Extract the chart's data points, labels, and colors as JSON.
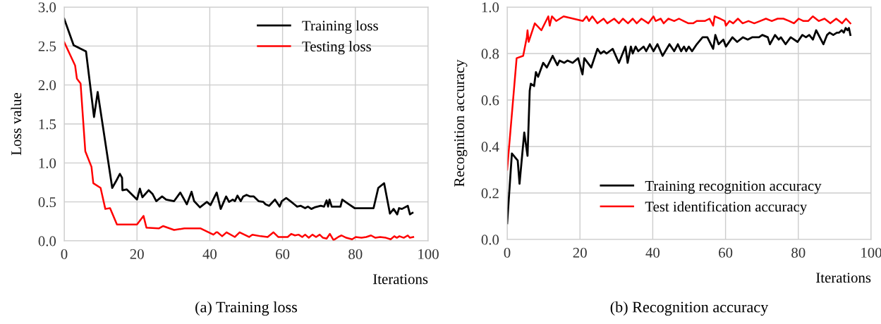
{
  "chart_data": [
    {
      "type": "line",
      "title": "(a) Training loss",
      "xlabel": "Iterations",
      "ylabel": "Loss value",
      "xlim": [
        0,
        100
      ],
      "xticks": [
        0,
        20,
        40,
        60,
        80,
        100
      ],
      "ylim": [
        0,
        3
      ],
      "yticks": [
        {
          "value": 0,
          "label": "0.0"
        },
        0.5,
        {
          "value": 1,
          "label": "1.0"
        },
        1.5,
        {
          "value": 2,
          "label": "2.0"
        },
        2.5,
        {
          "value": 3,
          "label": "3.0"
        }
      ],
      "grid": true,
      "legend": "top right",
      "marker": "none",
      "line_style": "solid",
      "series": [
        {
          "name": "Training loss",
          "color": "#000000",
          "x": [
            0,
            2.6,
            6,
            8.2,
            9.2,
            13.2,
            14.3,
            15.3,
            15.9,
            16.0,
            17.2,
            20,
            20.8,
            21.5,
            23.2,
            24.3,
            25.3,
            26.9,
            28,
            30.2,
            31.9,
            33.7,
            35,
            35.7,
            37.3,
            39.2,
            40.2,
            41.9,
            43.0,
            44.5,
            45.3,
            46.3,
            46.9,
            47.6,
            48.5,
            49.2,
            50.1,
            51.1,
            52.1,
            53.4,
            54.7,
            55.3,
            56.3,
            57.9,
            59.2,
            59.8,
            61.0,
            62.4,
            63.2,
            64.0,
            65.0,
            66.2,
            67.0,
            67.9,
            68.8,
            70.5,
            71.4,
            72.1,
            72.5,
            72.9,
            73.5,
            75.9,
            76.4,
            77.9,
            79.8,
            85.0,
            86.3,
            87.9,
            89.5,
            90.5,
            91.5,
            92.0,
            92.8,
            94.4,
            95.0,
            95.7
          ],
          "values": [
            2.85,
            2.51,
            2.43,
            1.59,
            1.91,
            0.68,
            0.77,
            0.86,
            0.81,
            0.65,
            0.66,
            0.53,
            0.67,
            0.56,
            0.65,
            0.6,
            0.51,
            0.57,
            0.53,
            0.51,
            0.62,
            0.47,
            0.63,
            0.51,
            0.43,
            0.5,
            0.46,
            0.62,
            0.41,
            0.57,
            0.5,
            0.53,
            0.51,
            0.58,
            0.51,
            0.57,
            0.59,
            0.57,
            0.57,
            0.51,
            0.5,
            0.47,
            0.45,
            0.53,
            0.44,
            0.51,
            0.55,
            0.5,
            0.47,
            0.44,
            0.45,
            0.42,
            0.44,
            0.41,
            0.43,
            0.45,
            0.44,
            0.52,
            0.44,
            0.53,
            0.44,
            0.44,
            0.53,
            0.48,
            0.42,
            0.42,
            0.68,
            0.74,
            0.35,
            0.41,
            0.34,
            0.42,
            0.41,
            0.45,
            0.34,
            0.36
          ]
        },
        {
          "name": "Testing loss",
          "color": "#ff0000",
          "x": [
            0,
            3,
            3.5,
            4.5,
            5.8,
            7.5,
            8,
            10,
            11.3,
            12.6,
            14.5,
            20,
            21.8,
            22.6,
            26,
            27.2,
            30.2,
            33,
            37.5,
            41,
            41.8,
            42.1,
            43.4,
            44.6,
            46.9,
            48.2,
            50.8,
            51.7,
            54.0,
            55.9,
            57.5,
            58.8,
            61.4,
            62.4,
            63.4,
            64.4,
            65.4,
            66.2,
            67.2,
            68.2,
            69.2,
            70.2,
            71.1,
            72.1,
            73.0,
            74.0,
            75.3,
            76.2,
            77.5,
            79.1,
            80.1,
            81.7,
            83.0,
            84.3,
            85.5,
            86.8,
            88.4,
            89.7,
            90.7,
            91.4,
            92.1,
            93.3,
            94.4,
            95.0,
            95.9
          ],
          "values": [
            2.55,
            2.25,
            2.08,
            2.02,
            1.15,
            0.95,
            0.74,
            0.68,
            0.41,
            0.42,
            0.21,
            0.21,
            0.32,
            0.17,
            0.16,
            0.19,
            0.14,
            0.16,
            0.16,
            0.08,
            0.11,
            0.11,
            0.06,
            0.11,
            0.05,
            0.11,
            0.05,
            0.08,
            0.06,
            0.05,
            0.11,
            0.05,
            0.05,
            0.09,
            0.07,
            0.08,
            0.05,
            0.08,
            0.04,
            0.08,
            0.05,
            0.08,
            0.04,
            0.03,
            0.09,
            0.01,
            0.05,
            0.07,
            0.04,
            0.02,
            0.05,
            0.04,
            0.05,
            0.07,
            0.04,
            0.05,
            0.04,
            0.02,
            0.06,
            0.04,
            0.06,
            0.04,
            0.07,
            0.04,
            0.05
          ]
        }
      ]
    },
    {
      "type": "line",
      "title": "(b) Recognition accuracy",
      "xlabel": "Iterations",
      "ylabel": "Recognition accuracy",
      "xlim": [
        0,
        100
      ],
      "xticks": [
        0,
        20,
        40,
        60,
        80,
        100
      ],
      "ylim": [
        0,
        1
      ],
      "yticks": [
        {
          "value": 0,
          "label": "0.0"
        },
        0.2,
        0.4,
        0.6,
        0.8,
        {
          "value": 1,
          "label": "1.0"
        }
      ],
      "grid": true,
      "legend": "bottom right",
      "marker": "none",
      "line_style": "solid",
      "series": [
        {
          "name": "Training recognition accuracy",
          "color": "#000000",
          "x": [
            0,
            1.3,
            2.9,
            3.4,
            4.7,
            5.6,
            6.2,
            6.5,
            7.4,
            7.9,
            8.5,
            9.9,
            10.9,
            12.5,
            13.8,
            14.4,
            15.7,
            16.6,
            18,
            19.5,
            20.7,
            21.2,
            23.1,
            24.8,
            25.7,
            26.6,
            27.3,
            29,
            30.7,
            32.5,
            33.1,
            34,
            34.5,
            35.3,
            36,
            37.5,
            38.2,
            39.2,
            40.2,
            41.3,
            42.7,
            44.6,
            45.9,
            46.9,
            47.8,
            48.6,
            49.2,
            49.9,
            50.8,
            52.1,
            53.7,
            55.0,
            56.6,
            57.2,
            58.1,
            59.4,
            60.1,
            61.9,
            63.2,
            64.8,
            66.1,
            67.3,
            69.2,
            70.1,
            71.6,
            72.2,
            73.6,
            74.6,
            75.2,
            76.5,
            77.9,
            79.8,
            81.1,
            82.1,
            83.0,
            84.0,
            84.9,
            86.9,
            87.9,
            88.6,
            89.6,
            90.6,
            91.2,
            91.9,
            92.5,
            93.0,
            93.5,
            93.9,
            94.3
          ],
          "values": [
            0.07,
            0.37,
            0.34,
            0.24,
            0.46,
            0.36,
            0.64,
            0.67,
            0.66,
            0.72,
            0.7,
            0.76,
            0.74,
            0.79,
            0.75,
            0.77,
            0.76,
            0.77,
            0.76,
            0.78,
            0.71,
            0.78,
            0.74,
            0.82,
            0.8,
            0.81,
            0.8,
            0.82,
            0.76,
            0.83,
            0.76,
            0.83,
            0.8,
            0.83,
            0.81,
            0.83,
            0.81,
            0.84,
            0.81,
            0.84,
            0.79,
            0.84,
            0.81,
            0.84,
            0.81,
            0.83,
            0.81,
            0.83,
            0.81,
            0.84,
            0.87,
            0.87,
            0.82,
            0.88,
            0.84,
            0.86,
            0.83,
            0.87,
            0.85,
            0.87,
            0.86,
            0.87,
            0.87,
            0.88,
            0.87,
            0.84,
            0.88,
            0.86,
            0.87,
            0.84,
            0.87,
            0.85,
            0.88,
            0.87,
            0.88,
            0.86,
            0.9,
            0.84,
            0.88,
            0.89,
            0.88,
            0.89,
            0.89,
            0.9,
            0.89,
            0.91,
            0.9,
            0.91,
            0.88
          ]
        },
        {
          "name": "Test identification accuracy",
          "color": "#ff0000",
          "x": [
            0,
            2.6,
            4.4,
            5.4,
            5.6,
            5.9,
            7.6,
            9.4,
            11.3,
            11.7,
            12.3,
            13.5,
            15.5,
            20.8,
            21.8,
            22.5,
            23.4,
            24.8,
            26.5,
            27.5,
            29.4,
            30.7,
            31.8,
            33.2,
            34.5,
            35.6,
            36.9,
            38.8,
            40.2,
            40.8,
            42.2,
            43.0,
            44.3,
            45.9,
            47.2,
            48.5,
            49.8,
            51.1,
            52.1,
            53.4,
            54.3,
            55.6,
            56.6,
            57.0,
            58.5,
            59.8,
            60.1,
            61.1,
            62.1,
            63.4,
            64.7,
            66.3,
            67.9,
            69.5,
            71.1,
            72.7,
            74.3,
            75.9,
            77.5,
            78.8,
            80.1,
            81.4,
            82.7,
            84.0,
            85.6,
            87.2,
            88.8,
            90.4,
            92.0,
            93.1,
            94.3
          ],
          "values": [
            0.3,
            0.78,
            0.79,
            0.87,
            0.9,
            0.85,
            0.93,
            0.9,
            0.96,
            0.92,
            0.96,
            0.94,
            0.96,
            0.94,
            0.96,
            0.94,
            0.96,
            0.93,
            0.95,
            0.93,
            0.95,
            0.93,
            0.95,
            0.93,
            0.95,
            0.93,
            0.95,
            0.93,
            0.96,
            0.94,
            0.95,
            0.93,
            0.95,
            0.94,
            0.95,
            0.94,
            0.93,
            0.93,
            0.94,
            0.94,
            0.94,
            0.95,
            0.92,
            0.96,
            0.95,
            0.94,
            0.92,
            0.94,
            0.93,
            0.95,
            0.93,
            0.94,
            0.93,
            0.94,
            0.95,
            0.94,
            0.95,
            0.95,
            0.94,
            0.93,
            0.95,
            0.94,
            0.94,
            0.96,
            0.94,
            0.95,
            0.93,
            0.95,
            0.93,
            0.95,
            0.93
          ]
        }
      ]
    }
  ]
}
